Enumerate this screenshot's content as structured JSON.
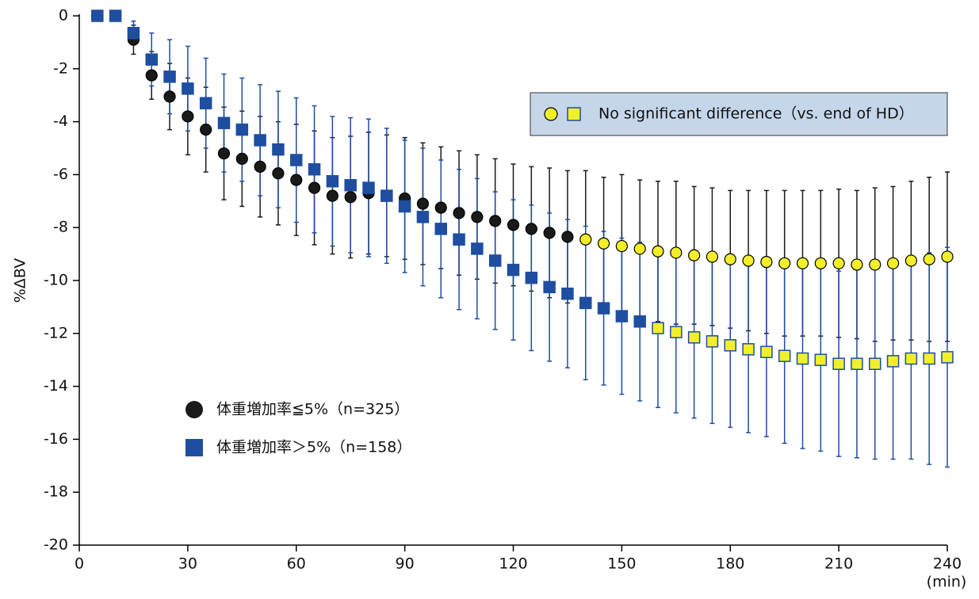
{
  "chart_data": {
    "type": "scatter",
    "ylabel": "%ΔBV",
    "xlabel": "(min)",
    "annotation": "No significant difference（vs. end of HD）",
    "annotation_color": "#c5d6ea",
    "highlight_color": "#f2ef2a",
    "legend": "lower left",
    "xlim": [
      0,
      240
    ],
    "ylim": [
      -20,
      0
    ],
    "xticks": [
      0,
      30,
      60,
      90,
      120,
      150,
      180,
      210,
      240
    ],
    "yticks": [
      0,
      -2,
      -4,
      -6,
      -8,
      -10,
      -12,
      -14,
      -16,
      -18,
      -20
    ],
    "x": [
      5,
      10,
      15,
      20,
      25,
      30,
      35,
      40,
      45,
      50,
      55,
      60,
      65,
      70,
      75,
      80,
      85,
      90,
      95,
      100,
      105,
      110,
      115,
      120,
      125,
      130,
      135,
      140,
      145,
      150,
      155,
      160,
      165,
      170,
      175,
      180,
      185,
      190,
      195,
      200,
      205,
      210,
      215,
      220,
      225,
      230,
      235,
      240
    ],
    "series": [
      {
        "name": "体重増加率≦5%（n=325）",
        "marker": "circle",
        "color": "#1a1a1a",
        "values": [
          0,
          0,
          -0.9,
          -2.25,
          -3.05,
          -3.8,
          -4.3,
          -5.2,
          -5.4,
          -5.7,
          -5.95,
          -6.2,
          -6.5,
          -6.8,
          -6.85,
          -6.7,
          -6.8,
          -6.9,
          -7.1,
          -7.25,
          -7.45,
          -7.6,
          -7.75,
          -7.9,
          -8.05,
          -8.2,
          -8.35,
          -8.45,
          -8.6,
          -8.7,
          -8.8,
          -8.9,
          -8.95,
          -9.05,
          -9.1,
          -9.2,
          -9.25,
          -9.3,
          -9.35,
          -9.35,
          -9.35,
          -9.35,
          -9.4,
          -9.4,
          -9.35,
          -9.25,
          -9.2,
          -9.1
        ],
        "errors": [
          0,
          0,
          0.55,
          0.9,
          1.25,
          1.45,
          1.6,
          1.75,
          1.8,
          1.9,
          1.95,
          2.1,
          2.15,
          2.2,
          2.3,
          2.3,
          2.3,
          2.3,
          2.3,
          2.3,
          2.35,
          2.35,
          2.35,
          2.3,
          2.35,
          2.45,
          2.5,
          2.6,
          2.5,
          2.7,
          2.6,
          2.65,
          2.7,
          2.6,
          2.6,
          2.6,
          2.65,
          2.7,
          2.75,
          2.75,
          2.75,
          2.8,
          2.8,
          2.9,
          2.9,
          3.0,
          3.1,
          3.2
        ],
        "nonsignificant": [
          false,
          false,
          false,
          false,
          false,
          false,
          false,
          false,
          false,
          false,
          false,
          false,
          false,
          false,
          false,
          false,
          false,
          false,
          false,
          false,
          false,
          false,
          false,
          false,
          false,
          false,
          false,
          true,
          true,
          true,
          true,
          true,
          true,
          true,
          true,
          true,
          true,
          true,
          true,
          true,
          true,
          true,
          true,
          true,
          true,
          true,
          true,
          true
        ]
      },
      {
        "name": "体重増加率＞5%（n=158）",
        "marker": "square",
        "color": "#1f4ea1",
        "values": [
          0,
          0,
          -0.65,
          -1.65,
          -2.3,
          -2.75,
          -3.3,
          -4.05,
          -4.3,
          -4.7,
          -5.05,
          -5.45,
          -5.8,
          -6.25,
          -6.4,
          -6.5,
          -6.8,
          -7.2,
          -7.6,
          -8.05,
          -8.45,
          -8.8,
          -9.25,
          -9.6,
          -9.9,
          -10.25,
          -10.5,
          -10.85,
          -11.05,
          -11.35,
          -11.55,
          -11.8,
          -11.95,
          -12.15,
          -12.3,
          -12.45,
          -12.6,
          -12.7,
          -12.85,
          -12.95,
          -13.0,
          -13.15,
          -13.15,
          -13.15,
          -13.05,
          -12.95,
          -12.95,
          -12.9
        ],
        "errors": [
          0,
          0,
          0.45,
          1.0,
          1.4,
          1.6,
          1.7,
          1.85,
          1.95,
          2.1,
          2.2,
          2.35,
          2.4,
          2.45,
          2.55,
          2.6,
          2.55,
          2.5,
          2.6,
          2.6,
          2.65,
          2.65,
          2.6,
          2.65,
          2.75,
          2.8,
          2.8,
          2.9,
          2.9,
          2.95,
          3.0,
          3.0,
          3.05,
          3.05,
          3.1,
          3.1,
          3.15,
          3.2,
          3.3,
          3.4,
          3.45,
          3.5,
          3.55,
          3.6,
          3.7,
          3.8,
          4.0,
          4.15
        ],
        "nonsignificant": [
          false,
          false,
          false,
          false,
          false,
          false,
          false,
          false,
          false,
          false,
          false,
          false,
          false,
          false,
          false,
          false,
          false,
          false,
          false,
          false,
          false,
          false,
          false,
          false,
          false,
          false,
          false,
          false,
          false,
          false,
          false,
          true,
          true,
          true,
          true,
          true,
          true,
          true,
          true,
          true,
          true,
          true,
          true,
          true,
          true,
          true,
          true,
          true
        ]
      }
    ]
  }
}
